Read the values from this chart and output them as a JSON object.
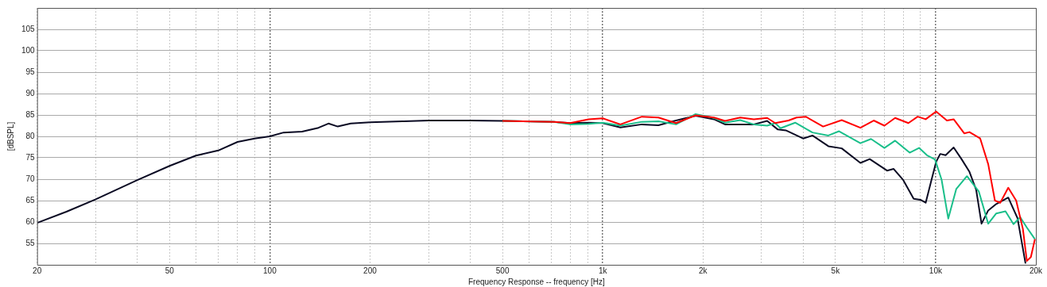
{
  "chart_data": {
    "type": "line",
    "xlabel": "Frequency Response -- frequency [Hz]",
    "ylabel": "[dBSPL]",
    "log": "x",
    "grid": true,
    "legend": false,
    "marker": "none",
    "line_style": "solid",
    "xlim": [
      20,
      20000
    ],
    "ylim": [
      50,
      110
    ],
    "xticks": [
      20,
      {
        "value": 30,
        "label": null
      },
      {
        "value": 40,
        "label": null
      },
      50,
      {
        "value": 60,
        "label": null
      },
      {
        "value": 70,
        "label": null
      },
      {
        "value": 80,
        "label": null
      },
      {
        "value": 90,
        "label": null
      },
      100,
      200,
      {
        "value": 300,
        "label": null
      },
      {
        "value": 400,
        "label": null
      },
      500,
      {
        "value": 600,
        "label": null
      },
      {
        "value": 700,
        "label": null
      },
      {
        "value": 800,
        "label": null
      },
      {
        "value": 900,
        "label": null
      },
      {
        "value": 1000,
        "label": "1k"
      },
      {
        "value": 2000,
        "label": "2k"
      },
      {
        "value": 3000,
        "label": null
      },
      {
        "value": 4000,
        "label": null
      },
      {
        "value": 5000,
        "label": "5k"
      },
      {
        "value": 6000,
        "label": null
      },
      {
        "value": 7000,
        "label": null
      },
      {
        "value": 8000,
        "label": null
      },
      {
        "value": 9000,
        "label": null
      },
      {
        "value": 10000,
        "label": "10k"
      },
      {
        "value": 20000,
        "label": "20k"
      }
    ],
    "yticks": [
      55,
      60,
      65,
      70,
      75,
      80,
      85,
      90,
      95,
      100,
      105
    ],
    "series": [
      {
        "color": "#ff0000",
        "x": [
          500,
          714,
          797,
          906,
          1000,
          1130,
          1311,
          1470,
          1660,
          1901,
          2158,
          2330,
          2589,
          2843,
          3119,
          3296,
          3614,
          3820,
          4072,
          4591,
          5222,
          5943,
          6516,
          7016,
          7556,
          8282,
          8830,
          9335,
          10040,
          10810,
          11325,
          12184,
          12637,
          13608,
          14385,
          15066,
          15630,
          16525,
          17454,
          18280,
          18790,
          19320,
          19870
        ],
        "values": [
          83.6,
          83.4,
          83.1,
          84.0,
          84.2,
          82.8,
          84.6,
          84.4,
          83.1,
          84.9,
          84.4,
          83.6,
          84.4,
          84.0,
          84.3,
          83.1,
          83.7,
          84.4,
          84.6,
          82.3,
          83.8,
          82.0,
          83.7,
          82.5,
          84.3,
          83.1,
          84.6,
          84.0,
          85.8,
          83.7,
          84.0,
          80.7,
          81.0,
          79.5,
          73.5,
          65.0,
          64.5,
          68.0,
          65.0,
          58.4,
          50.9,
          51.8,
          56.0
        ]
      },
      {
        "color": "#1abf8a",
        "x": [
          500,
          714,
          797,
          906,
          1000,
          1130,
          1311,
          1470,
          1660,
          1901,
          2158,
          2330,
          2589,
          2843,
          3119,
          3296,
          3419,
          3785,
          4265,
          4762,
          5127,
          5943,
          6396,
          7016,
          7556,
          8355,
          8915,
          9417,
          9955,
          10418,
          10911,
          11530,
          12416,
          13484,
          14385,
          15207,
          16210,
          17130,
          17950,
          18790,
          19870
        ],
        "values": [
          83.6,
          83.4,
          82.8,
          82.9,
          83.2,
          82.5,
          83.4,
          83.5,
          82.8,
          85.2,
          84.3,
          83.2,
          83.8,
          82.8,
          82.5,
          83.1,
          81.9,
          83.2,
          80.9,
          80.2,
          81.2,
          78.4,
          79.4,
          77.3,
          79.0,
          76.2,
          77.3,
          75.6,
          74.6,
          69.9,
          60.8,
          67.7,
          70.7,
          67.1,
          59.6,
          62.0,
          62.5,
          59.5,
          61.1,
          58.7,
          56.0
        ]
      },
      {
        "color": "#0a0a23",
        "x": [
          20,
          24.5,
          30,
          40,
          50,
          60,
          70,
          80,
          90,
          100,
          110,
          125,
          140,
          150,
          160,
          175,
          200,
          250,
          300,
          400,
          500,
          714,
          797,
          906,
          1000,
          1130,
          1311,
          1470,
          1660,
          1901,
          2158,
          2330,
          2589,
          2843,
          3119,
          3357,
          3548,
          3998,
          4265,
          4762,
          5222,
          5943,
          6338,
          7145,
          7480,
          7976,
          8590,
          8995,
          9335,
          9678,
          10040,
          10321,
          10715,
          11325,
          11958,
          12637,
          13235,
          13734,
          14385,
          15207,
          16525,
          17614,
          18620
        ],
        "values": [
          59.8,
          62.4,
          65.3,
          69.8,
          73.1,
          75.5,
          76.7,
          78.7,
          79.5,
          80.0,
          80.9,
          81.1,
          82.0,
          83.0,
          82.3,
          83.0,
          83.3,
          83.5,
          83.7,
          83.7,
          83.6,
          83.4,
          83.1,
          83.2,
          83.1,
          82.1,
          82.8,
          82.6,
          83.7,
          84.8,
          84.0,
          82.8,
          82.8,
          82.8,
          83.6,
          81.6,
          81.4,
          79.5,
          80.2,
          77.7,
          77.2,
          73.8,
          74.7,
          72.0,
          72.4,
          69.9,
          65.4,
          65.2,
          64.5,
          69.3,
          74.1,
          75.9,
          75.6,
          77.4,
          74.7,
          71.7,
          67.5,
          59.6,
          62.7,
          64.2,
          65.7,
          60.9,
          50.3
        ]
      }
    ]
  }
}
